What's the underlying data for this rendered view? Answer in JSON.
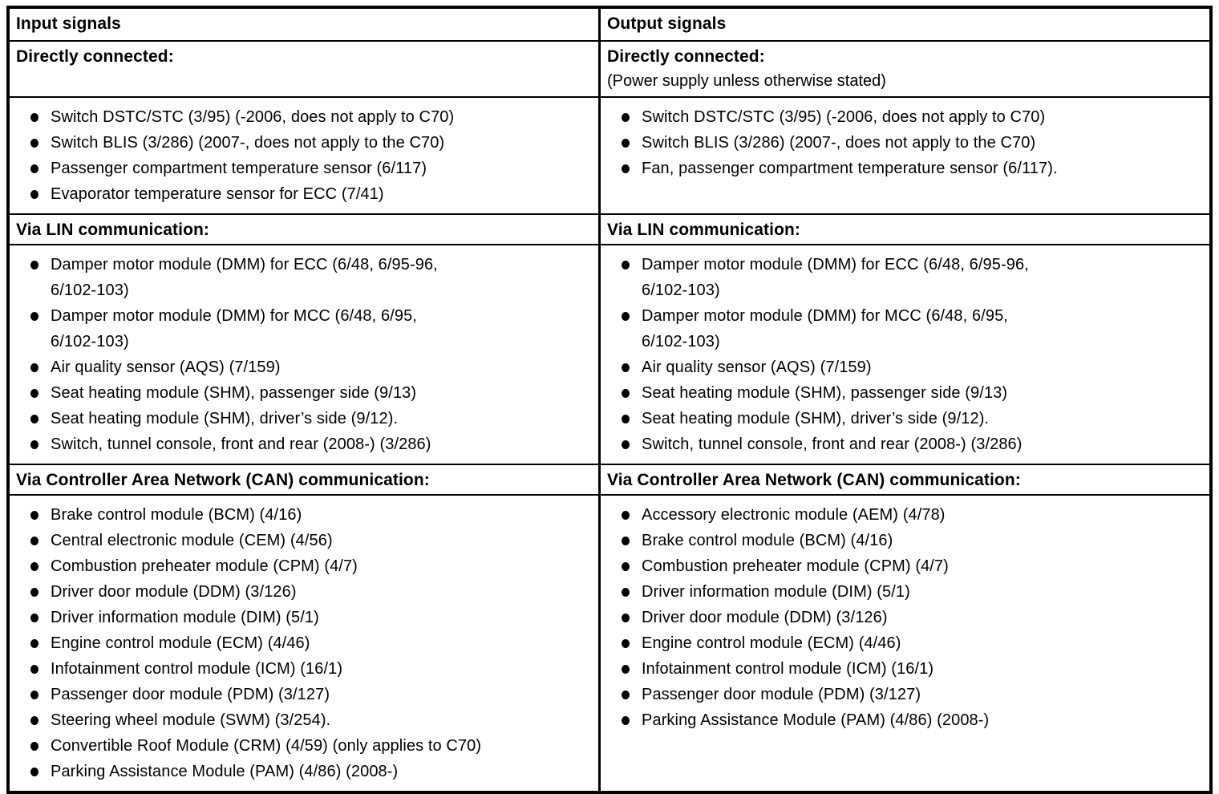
{
  "colors": {
    "border": "#000000",
    "text": "#000000",
    "background": "#ffffff"
  },
  "table": {
    "columns": [
      {
        "header": "Input signals",
        "sections": [
          {
            "title": "Directly connected:",
            "subtitle": "",
            "items": [
              "Switch DSTC/STC (3/95) (-2006, does not apply to C70)",
              "Switch BLIS (3/286) (2007-, does not apply to the C70)",
              "Passenger compartment temperature sensor (6/117)",
              "Evaporator temperature sensor for ECC (7/41)"
            ]
          },
          {
            "title": "Via LIN communication:",
            "subtitle": "",
            "items": [
              "Damper motor module (DMM) for ECC (6/48, 6/95-96,\n6/102-103)",
              "Damper motor module (DMM) for MCC (6/48, 6/95,\n6/102-103)",
              "Air quality sensor (AQS) (7/159)",
              "Seat heating module (SHM), passenger side (9/13)",
              "Seat heating module (SHM), driver’s side (9/12).",
              "Switch, tunnel console, front and rear (2008-) (3/286)"
            ]
          },
          {
            "title": "Via Controller Area Network (CAN) communication:",
            "subtitle": "",
            "items": [
              "Brake control module (BCM) (4/16)",
              "Central electronic module (CEM) (4/56)",
              "Combustion preheater module (CPM) (4/7)",
              "Driver door module (DDM) (3/126)",
              "Driver information module (DIM) (5/1)",
              "Engine control module (ECM) (4/46)",
              "Infotainment control module (ICM) (16/1)",
              "Passenger door module (PDM) (3/127)",
              "Steering wheel module (SWM) (3/254).",
              "Convertible Roof Module (CRM) (4/59) (only applies to C70)",
              "Parking Assistance Module (PAM) (4/86) (2008-)"
            ]
          }
        ]
      },
      {
        "header": "Output signals",
        "sections": [
          {
            "title": "Directly connected:",
            "subtitle": "(Power supply unless otherwise stated)",
            "items": [
              "Switch DSTC/STC (3/95) (-2006, does not apply to C70)",
              "Switch BLIS (3/286) (2007-, does not apply to the C70)",
              "Fan, passenger compartment temperature sensor (6/117)."
            ]
          },
          {
            "title": "Via LIN communication:",
            "subtitle": "",
            "items": [
              "Damper motor module (DMM) for ECC (6/48, 6/95-96,\n6/102-103)",
              "Damper motor module (DMM) for MCC (6/48, 6/95,\n6/102-103)",
              "Air quality sensor (AQS) (7/159)",
              "Seat heating module (SHM), passenger side (9/13)",
              "Seat heating module (SHM), driver’s side (9/12).",
              "Switch, tunnel console, front and rear (2008-) (3/286)"
            ]
          },
          {
            "title": "Via Controller Area Network (CAN) communication:",
            "subtitle": "",
            "items": [
              "Accessory electronic module (AEM) (4/78)",
              "Brake control module (BCM) (4/16)",
              "Combustion preheater module (CPM) (4/7)",
              "Driver information module (DIM) (5/1)",
              "Driver door module (DDM) (3/126)",
              "Engine control module (ECM) (4/46)",
              "Infotainment control module (ICM) (16/1)",
              "Passenger door module (PDM) (3/127)",
              "Parking Assistance Module (PAM) (4/86) (2008-)"
            ]
          }
        ]
      }
    ]
  }
}
